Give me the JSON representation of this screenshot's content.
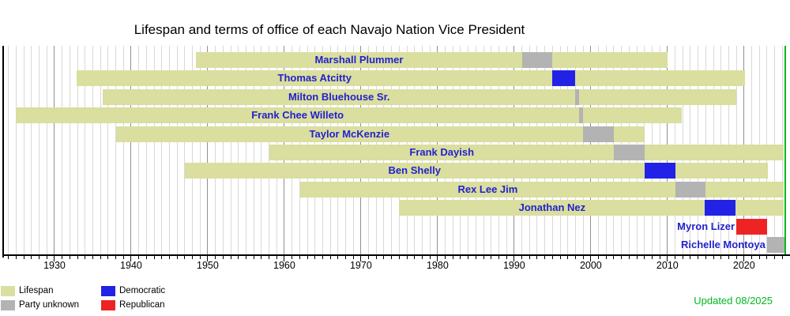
{
  "updated_note": "Updated 08/2025",
  "colors": {
    "lifespan": "#dade9f",
    "party_unknown": "#b3b3b3",
    "democratic": "#2222e6",
    "republican": "#ee2424",
    "name_text": "#2222cc",
    "now_line": "#00b820",
    "updated_text": "#00b820",
    "grid_minor": "#d8d8d8",
    "grid_decade": "#8f8f8f",
    "axis": "#000000"
  },
  "chart_data": {
    "type": "bar",
    "subtype": "timeline_gantt",
    "title": "Lifespan and terms of office of each Navajo Nation Vice President",
    "x_axis": {
      "unit": "year",
      "min": 1923.3,
      "max": 2026,
      "major_ticks": [
        1930,
        1940,
        1950,
        1960,
        1970,
        1980,
        1990,
        2000,
        2010,
        2020
      ],
      "minor_tick_every": 1,
      "grid": true
    },
    "now_line": {
      "year": 2025.4
    },
    "legend": [
      {
        "id": "lifespan",
        "label": "Lifespan"
      },
      {
        "id": "party_unknown",
        "label": "Party unknown"
      },
      {
        "id": "democratic",
        "label": "Democratic"
      },
      {
        "id": "republican",
        "label": "Republican"
      }
    ],
    "rows": [
      {
        "name": "Marshall Plummer",
        "lifespan": {
          "start": 1948.5,
          "end": 2010.0
        },
        "term": {
          "start": 1991.0,
          "end": 1995.0,
          "party": "party_unknown"
        }
      },
      {
        "name": "Thomas Atcitty",
        "lifespan": {
          "start": 1932.9,
          "end": 2020.1
        },
        "term": {
          "start": 1995.0,
          "end": 1998.0,
          "party": "democratic"
        }
      },
      {
        "name": "Milton Bluehouse Sr.",
        "lifespan": {
          "start": 1936.3,
          "end": 2019.0
        },
        "term": {
          "start": 1998.0,
          "end": 1998.45,
          "party": "party_unknown"
        }
      },
      {
        "name": "Frank Chee Willeto",
        "lifespan": {
          "start": 1925.0,
          "end": 2011.9
        },
        "term": {
          "start": 1998.45,
          "end": 1999.0,
          "party": "party_unknown"
        }
      },
      {
        "name": "Taylor McKenzie",
        "lifespan": {
          "start": 1938.0,
          "end": 2007.0
        },
        "term": {
          "start": 1999.0,
          "end": 2003.0,
          "party": "party_unknown"
        }
      },
      {
        "name": "Frank Dayish",
        "lifespan": {
          "start": 1958.1,
          "end": "present"
        },
        "term": {
          "start": 2003.0,
          "end": 2007.0,
          "party": "party_unknown"
        }
      },
      {
        "name": "Ben Shelly",
        "lifespan": {
          "start": 1947.0,
          "end": 2023.1
        },
        "term": {
          "start": 2007.0,
          "end": 2011.0,
          "party": "democratic"
        }
      },
      {
        "name": "Rex Lee Jim",
        "lifespan": {
          "start": 1962.1,
          "end": "present"
        },
        "term": {
          "start": 2011.0,
          "end": 2015.0,
          "party": "party_unknown"
        }
      },
      {
        "name": "Jonathan Nez",
        "lifespan": {
          "start": 1975.0,
          "end": "present"
        },
        "term": {
          "start": 2014.9,
          "end": 2018.9,
          "party": "democratic"
        }
      },
      {
        "name": "Myron Lizer",
        "lifespan": null,
        "term": {
          "start": 2019.0,
          "end": 2023.0,
          "party": "republican"
        }
      },
      {
        "name": "Richelle Montoya",
        "lifespan": null,
        "term": {
          "start": 2023.0,
          "end": "present",
          "party": "party_unknown"
        }
      }
    ]
  }
}
